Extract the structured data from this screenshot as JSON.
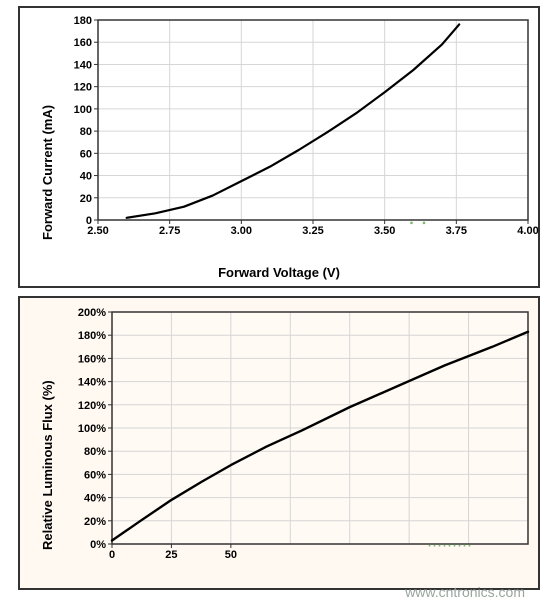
{
  "watermark": "www.cntronics.com",
  "top_chart": {
    "type": "line",
    "xlabel": "Forward Voltage (V)",
    "ylabel": "Forward Current (mA)",
    "label_fontsize": 13,
    "tick_fontsize": 11,
    "xlim": [
      2.5,
      4.0
    ],
    "ylim": [
      0,
      180
    ],
    "xticks": [
      2.5,
      2.75,
      3.0,
      3.25,
      3.5,
      3.75,
      4.0
    ],
    "yticks": [
      0,
      20,
      40,
      60,
      80,
      100,
      120,
      140,
      160,
      180
    ],
    "xtick_labels": [
      "2.50",
      "2.75",
      "3.00",
      "3.25",
      "3.50",
      "3.75",
      "4.00"
    ],
    "ytick_labels": [
      "0",
      "20",
      "40",
      "60",
      "80",
      "100",
      "120",
      "140",
      "160",
      "180"
    ],
    "grid_color": "#d6d6d6",
    "axis_color": "#333333",
    "background_color": "#ffffff",
    "line_color": "#000000",
    "line_width": 2.2,
    "data_x": [
      2.6,
      2.7,
      2.8,
      2.9,
      3.0,
      3.1,
      3.2,
      3.3,
      3.4,
      3.5,
      3.6,
      3.7,
      3.76
    ],
    "data_y": [
      2,
      6,
      12,
      22,
      35,
      48,
      63,
      79,
      96,
      115,
      135,
      158,
      176
    ]
  },
  "bottom_chart": {
    "type": "line",
    "xlabel": "",
    "ylabel": "Relative Luminous Flux (%)",
    "label_fontsize": 13,
    "tick_fontsize": 11,
    "xlim": [
      0,
      175
    ],
    "ylim": [
      0,
      200
    ],
    "xticks": [
      0,
      25,
      50
    ],
    "yticks": [
      0,
      20,
      40,
      60,
      80,
      100,
      120,
      140,
      160,
      180,
      200
    ],
    "xtick_labels": [
      "0",
      "25",
      "50"
    ],
    "ytick_labels": [
      "0%",
      "20%",
      "40%",
      "60%",
      "80%",
      "100%",
      "120%",
      "140%",
      "160%",
      "180%",
      "200%"
    ],
    "additional_grid_x": [
      75,
      100,
      125,
      150,
      175
    ],
    "grid_color": "#d6d6d6",
    "axis_color": "#333333",
    "background_color": "#fffaf4",
    "line_color": "#000000",
    "line_width": 2.4,
    "data_x": [
      0,
      12,
      25,
      38,
      50,
      65,
      80,
      100,
      120,
      140,
      160,
      175
    ],
    "data_y": [
      3,
      20,
      38,
      54,
      68,
      84,
      98,
      118,
      136,
      154,
      170,
      183
    ]
  }
}
